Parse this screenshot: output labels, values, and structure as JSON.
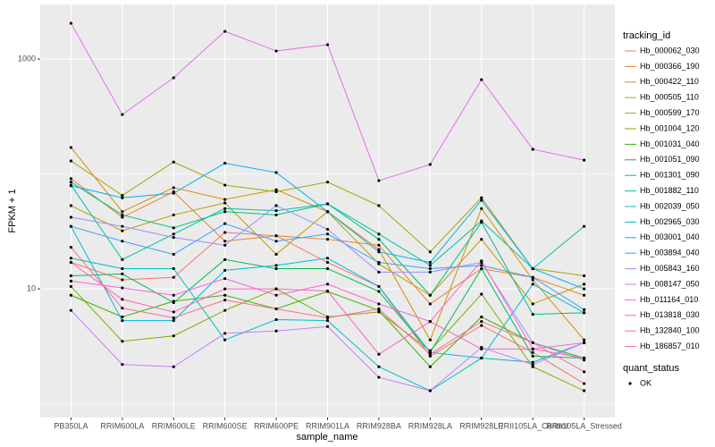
{
  "chart_data": {
    "type": "line",
    "x_label": "sample_name",
    "y_label": "FPKM + 1",
    "categories": [
      "PB350LA",
      "RRIM600LA",
      "RRIM600LE",
      "RRIM600SE",
      "RRIM600PE",
      "RRIM901LA",
      "RRIM928BA",
      "RRIM928LA",
      "RRIM928LE",
      "RRII105LA_Control",
      "RRII105LA_Stressed"
    ],
    "log_y": true,
    "grid": true,
    "ylim": [
      0.76,
      2985
    ],
    "yticks": [
      10,
      1000
    ],
    "minor_yticks": [
      1,
      100
    ],
    "legend_title": "tracking_id",
    "legend_position": "right",
    "legend2_title": "quant_status",
    "legend2_items": [
      "OK"
    ],
    "series": [
      {
        "name": "Hb_000062_030",
        "color": "#F8766D",
        "values": [
          17,
          12,
          12.6,
          31,
          29,
          17,
          10.5,
          2.6,
          4.8,
          2.8,
          1.5
        ]
      },
      {
        "name": "Hb_000366_190",
        "color": "#EA8331",
        "values": [
          91,
          42,
          70,
          26,
          29,
          27,
          24,
          7.4,
          15,
          12.6,
          8.8
        ]
      },
      {
        "name": "Hb_000422_110",
        "color": "#D89000",
        "values": [
          170,
          47,
          76,
          60,
          73,
          47,
          22,
          3.6,
          50,
          12,
          3.6
        ]
      },
      {
        "name": "Hb_000505_110",
        "color": "#C09B00",
        "values": [
          53,
          32,
          44,
          56,
          20,
          47,
          16.5,
          8.8,
          27,
          7.4,
          11
        ]
      },
      {
        "name": "Hb_000599_170",
        "color": "#A3A500",
        "values": [
          130,
          65,
          127,
          80,
          70,
          85,
          53,
          21,
          62,
          15,
          13
        ]
      },
      {
        "name": "Hb_001004_120",
        "color": "#7CAE00",
        "values": [
          10.5,
          3.5,
          3.9,
          6.5,
          10,
          5.7,
          6.3,
          2.9,
          9,
          2.1,
          1.3
        ]
      },
      {
        "name": "Hb_001031_040",
        "color": "#39B600",
        "values": [
          8.8,
          5.7,
          7.8,
          8.8,
          6.7,
          9.5,
          6.5,
          2.1,
          5.7,
          3.4,
          2.5
        ]
      },
      {
        "name": "Hb_001051_090",
        "color": "#00BB4E",
        "values": [
          13,
          13.5,
          7.6,
          18,
          15,
          15,
          9.5,
          2.8,
          15,
          2.6,
          2.5
        ]
      },
      {
        "name": "Hb_001301_090",
        "color": "#00BF7D",
        "values": [
          85,
          44,
          34,
          47,
          44,
          55,
          27,
          8.8,
          38,
          6,
          6.2
        ]
      },
      {
        "name": "Hb_001882_110",
        "color": "#00C1A3",
        "values": [
          80,
          18,
          30,
          50,
          48,
          55,
          30,
          16,
          39,
          15,
          35
        ]
      },
      {
        "name": "Hb_002039_050",
        "color": "#00BFC4",
        "values": [
          18.5,
          15,
          15,
          3.6,
          5.4,
          5.3,
          2.1,
          1.3,
          2.5,
          2.3,
          3.4
        ]
      },
      {
        "name": "Hb_002965_030",
        "color": "#00BAE0",
        "values": [
          35,
          5.3,
          5.3,
          14.5,
          16,
          18.5,
          10.5,
          2.8,
          2.5,
          11,
          6.2
        ]
      },
      {
        "name": "Hb_003001_040",
        "color": "#00B0F6",
        "values": [
          79,
          62,
          68,
          124,
          103,
          47,
          21,
          17,
          59,
          15,
          10
        ]
      },
      {
        "name": "Hb_003894_040",
        "color": "#35A2FF",
        "values": [
          35,
          26,
          20,
          37,
          26,
          30,
          17,
          15,
          16,
          12.6,
          6.6
        ]
      },
      {
        "name": "Hb_005843_160",
        "color": "#9590FF",
        "values": [
          42,
          35,
          28,
          24,
          53,
          33,
          14,
          14,
          17,
          3.4,
          2.4
        ]
      },
      {
        "name": "Hb_008147_050",
        "color": "#C77CFF",
        "values": [
          6.5,
          2.2,
          2.1,
          4.1,
          4.3,
          4.7,
          1.7,
          1.3,
          3.1,
          2.2,
          3.4
        ]
      },
      {
        "name": "Hb_011164_010",
        "color": "#E76BF3",
        "values": [
          2047,
          329,
          687,
          1742,
          1175,
          1334,
          87.5,
          121,
          662,
          164,
          132
        ]
      },
      {
        "name": "Hb_013818_030",
        "color": "#FA62DB",
        "values": [
          11.7,
          10.2,
          8.8,
          12.3,
          8.8,
          11,
          7.4,
          5.2,
          17.5,
          3,
          3.4
        ]
      },
      {
        "name": "Hb_132840_100",
        "color": "#FF62BC",
        "values": [
          17,
          8.1,
          6.3,
          10,
          10,
          9.6,
          2.7,
          5.2,
          3,
          3,
          2.5
        ]
      },
      {
        "name": "Hb_186857_010",
        "color": "#FF6C91",
        "values": [
          23,
          6.8,
          5.6,
          8,
          6.7,
          5.6,
          6.7,
          2.7,
          5.2,
          3.4,
          1.9
        ]
      }
    ]
  }
}
